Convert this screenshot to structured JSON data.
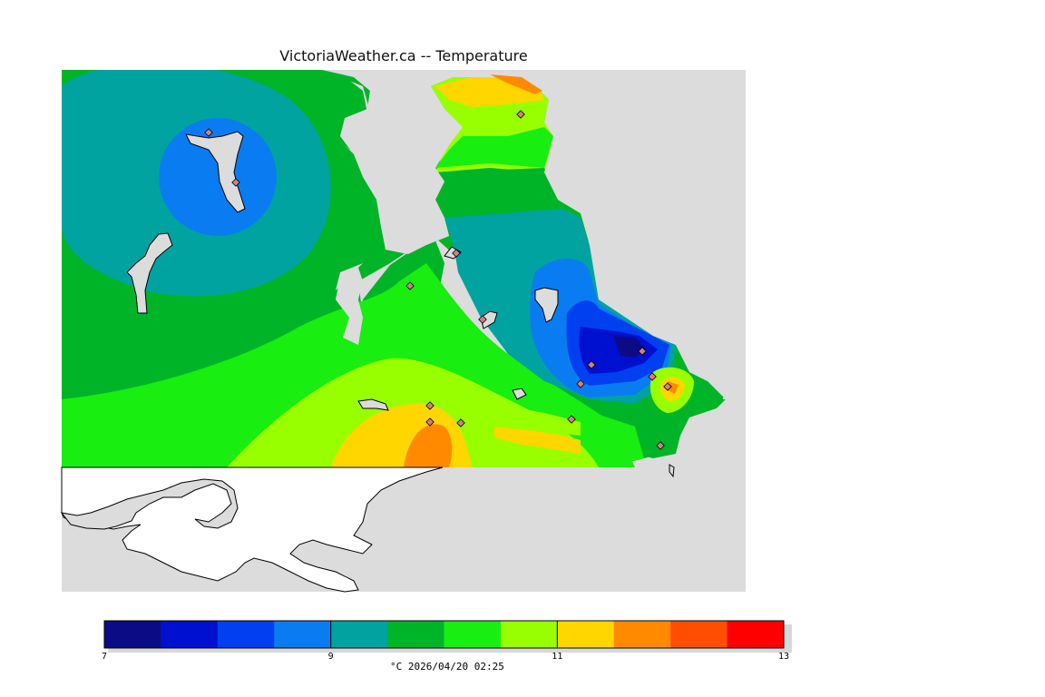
{
  "title": "VictoriaWeather.ca -- Temperature",
  "legend": {
    "min": 7,
    "max": 13,
    "ticks": [
      "7",
      "9",
      "11",
      "13"
    ],
    "unit_label": "°C",
    "timestamp": "2026/04/20 02:25",
    "colors": [
      "#0b0b86",
      "#0010d0",
      "#0040f0",
      "#0a7cf2",
      "#00a3a0",
      "#00b428",
      "#18ee10",
      "#98ff00",
      "#ffd600",
      "#ff8a00",
      "#ff4e00",
      "#ff0000"
    ]
  },
  "map_colors": {
    "land_outside": "#ffffff",
    "sea": "#dcdcdc",
    "coast": "#000000",
    "station": "#d08080"
  }
}
